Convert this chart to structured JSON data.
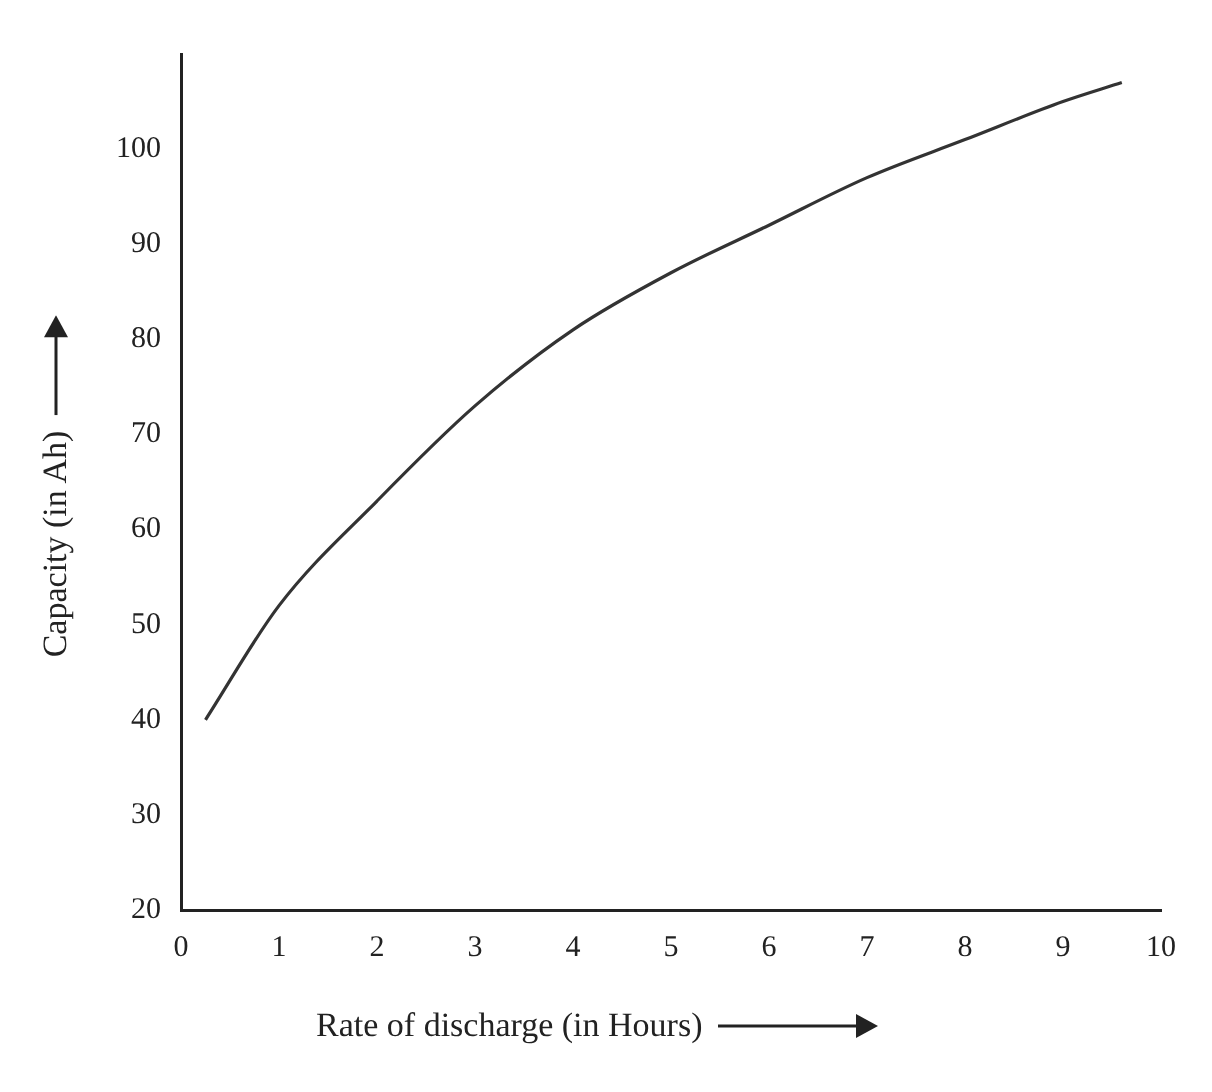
{
  "chart_data": {
    "type": "line",
    "xlabel": "Rate of discharge (in Hours)",
    "ylabel": "Capacity (in Ah)",
    "xlim": [
      0,
      10
    ],
    "xticks": [
      0,
      1,
      2,
      3,
      4,
      5,
      6,
      7,
      8,
      9,
      10
    ],
    "ylim": [
      20,
      110
    ],
    "yticks": [
      20,
      30,
      40,
      50,
      60,
      70,
      80,
      90,
      100
    ],
    "grid": false,
    "legend": false,
    "marker": "none",
    "line_style": "solid",
    "series": [
      {
        "color": "#333333",
        "x": [
          0.25,
          1,
          2,
          3,
          4,
          5,
          6,
          7,
          8,
          9,
          9.6
        ],
        "values": [
          40,
          52,
          63,
          73,
          81,
          87,
          92,
          97,
          101,
          105,
          107
        ]
      }
    ]
  }
}
